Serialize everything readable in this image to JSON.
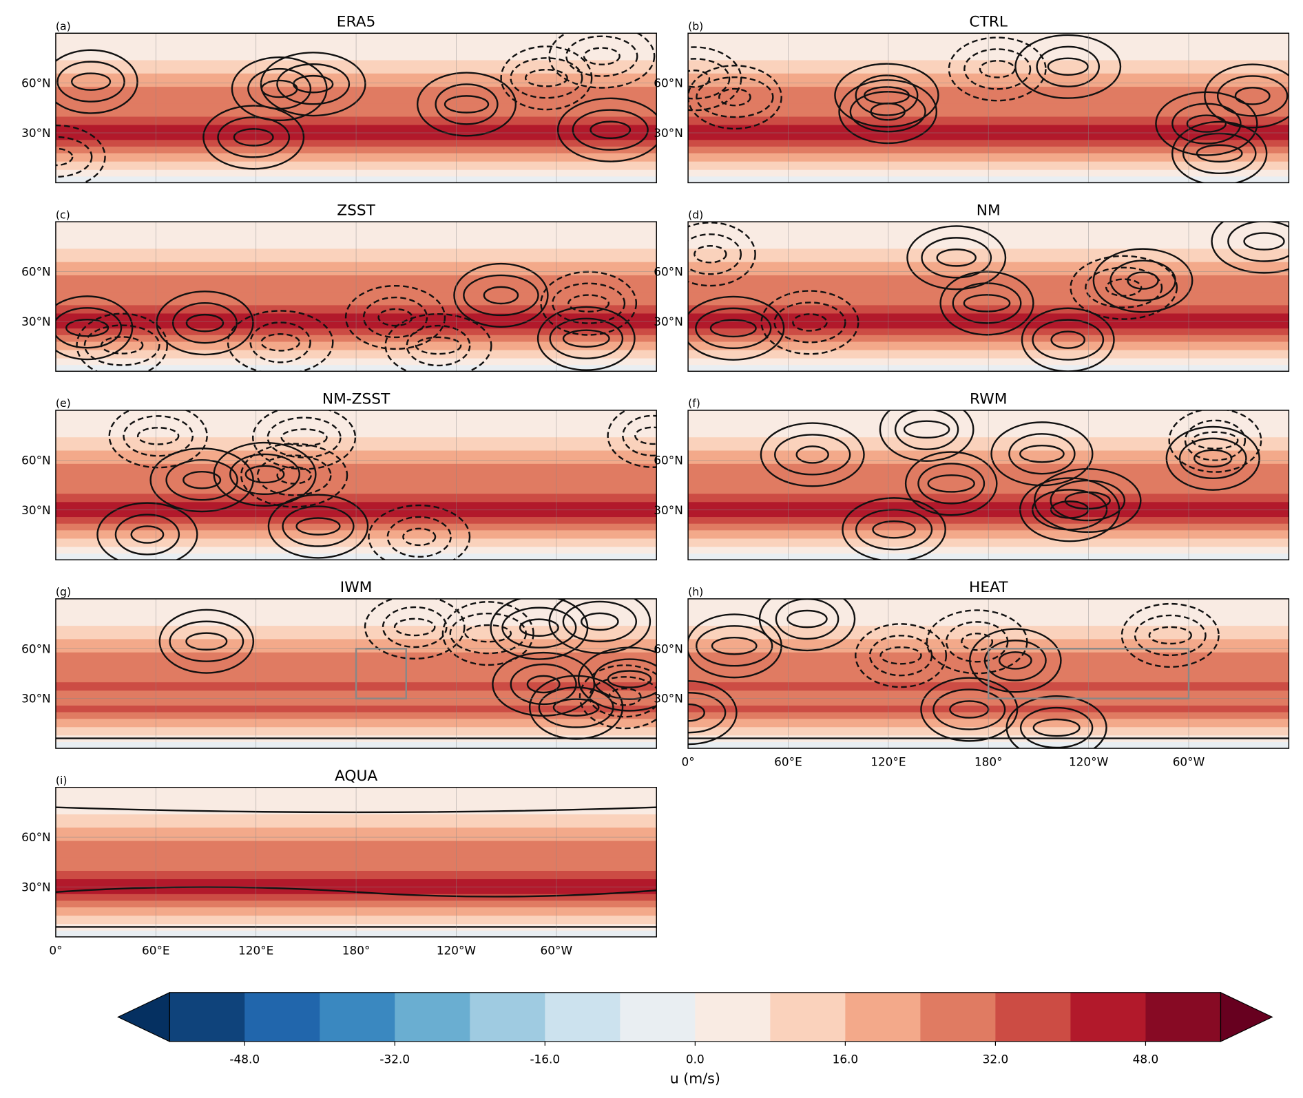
{
  "panels": [
    {
      "label": "(a)",
      "title": "ERA5"
    },
    {
      "label": "(b)",
      "title": "CTRL"
    },
    {
      "label": "(c)",
      "title": "ZSST"
    },
    {
      "label": "(d)",
      "title": "NM"
    },
    {
      "label": "(e)",
      "title": "NM-ZSST"
    },
    {
      "label": "(f)",
      "title": "RWM"
    },
    {
      "label": "(g)",
      "title": "IWM"
    },
    {
      "label": "(h)",
      "title": "HEAT"
    },
    {
      "label": "(i)",
      "title": "AQUA"
    }
  ],
  "lat_range": [
    0,
    90
  ],
  "lon_range": [
    0,
    360
  ],
  "lat_ticks": [
    {
      "value": 60,
      "label": "60°N"
    },
    {
      "value": 30,
      "label": "30°N"
    }
  ],
  "lon_ticks": [
    {
      "value": 0,
      "label": "0°"
    },
    {
      "value": 60,
      "label": "60°E"
    },
    {
      "value": 120,
      "label": "120°E"
    },
    {
      "value": 180,
      "label": "180°"
    },
    {
      "value": 240,
      "label": "120°W"
    },
    {
      "value": 300,
      "label": "60°W"
    }
  ],
  "colorbar": {
    "label": "u (m/s)",
    "extend": "both",
    "boundaries": [
      -56,
      -48,
      -40,
      -32,
      -24,
      -16,
      -8,
      0,
      8,
      16,
      24,
      32,
      40,
      48,
      56
    ],
    "colors": [
      "#0f437b",
      "#2166ac",
      "#3a88c0",
      "#6aaed1",
      "#9fcbe1",
      "#cce2ee",
      "#e9eef2",
      "#f9ebe3",
      "#fad2bc",
      "#f3a98a",
      "#e07b62",
      "#cc4c44",
      "#b2192b",
      "#870a24"
    ],
    "under_color": "#053061",
    "over_color": "#67001f",
    "ticks": [
      {
        "value": -48,
        "label": "-48.0"
      },
      {
        "value": -32,
        "label": "-32.0"
      },
      {
        "value": -16,
        "label": "-16.0"
      },
      {
        "value": 0,
        "label": "0.0"
      },
      {
        "value": 16,
        "label": "16.0"
      },
      {
        "value": 32,
        "label": "32.0"
      },
      {
        "value": 48,
        "label": "48.0"
      }
    ]
  }
}
